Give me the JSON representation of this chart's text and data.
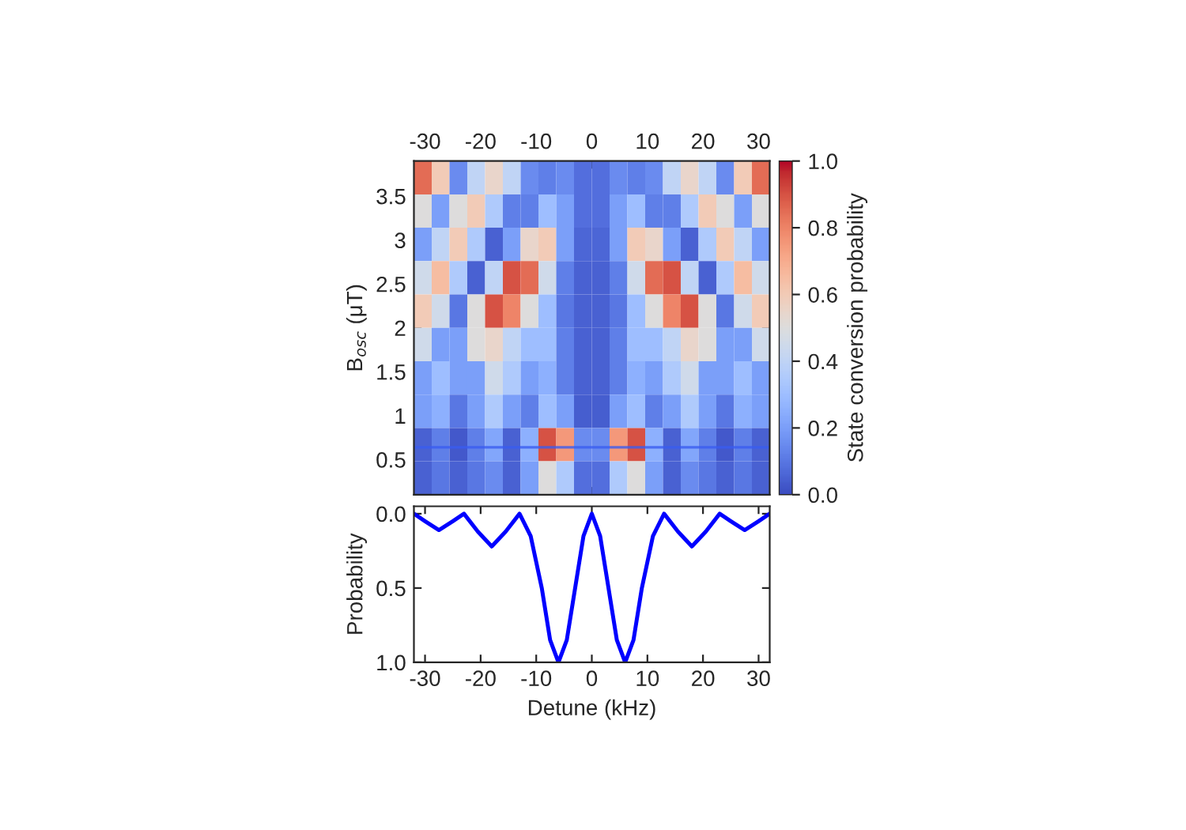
{
  "chart_data": [
    {
      "type": "heatmap",
      "ylabel": "B$_{osc}$ (μT)",
      "clabel": "State conversion probability",
      "x": [
        -30.4,
        -27.2,
        -24,
        -20.8,
        -17.6,
        -14.4,
        -11.2,
        -8,
        -4.8,
        -1.6,
        1.6,
        4.8,
        8,
        11.2,
        14.4,
        17.6,
        20.8,
        24,
        27.2,
        30.4
      ],
      "y": [
        3.71,
        3.33,
        2.95,
        2.57,
        2.19,
        1.81,
        1.43,
        1.05,
        0.67,
        0.29
      ],
      "cells": [
        [
          0.85,
          0.6,
          0.15,
          0.4,
          0.55,
          0.4,
          0.15,
          0.12,
          0.15,
          0.08,
          0.08,
          0.15,
          0.12,
          0.15,
          0.4,
          0.55,
          0.4,
          0.15,
          0.6,
          0.85
        ],
        [
          0.5,
          0.2,
          0.5,
          0.6,
          0.35,
          0.12,
          0.12,
          0.3,
          0.2,
          0.08,
          0.08,
          0.2,
          0.3,
          0.12,
          0.12,
          0.35,
          0.6,
          0.5,
          0.2,
          0.5
        ],
        [
          0.2,
          0.4,
          0.6,
          0.35,
          0.05,
          0.2,
          0.55,
          0.6,
          0.2,
          0.06,
          0.06,
          0.2,
          0.6,
          0.55,
          0.2,
          0.05,
          0.35,
          0.6,
          0.4,
          0.2
        ],
        [
          0.45,
          0.65,
          0.35,
          0.05,
          0.4,
          0.9,
          0.85,
          0.45,
          0.12,
          0.05,
          0.05,
          0.12,
          0.45,
          0.85,
          0.9,
          0.4,
          0.05,
          0.35,
          0.65,
          0.45
        ],
        [
          0.6,
          0.45,
          0.1,
          0.5,
          0.9,
          0.8,
          0.5,
          0.3,
          0.1,
          0.05,
          0.05,
          0.1,
          0.3,
          0.5,
          0.8,
          0.9,
          0.5,
          0.1,
          0.45,
          0.6
        ],
        [
          0.45,
          0.2,
          0.2,
          0.5,
          0.55,
          0.4,
          0.3,
          0.3,
          0.12,
          0.05,
          0.05,
          0.12,
          0.3,
          0.3,
          0.4,
          0.55,
          0.5,
          0.2,
          0.2,
          0.45
        ],
        [
          0.2,
          0.3,
          0.2,
          0.2,
          0.45,
          0.35,
          0.2,
          0.25,
          0.12,
          0.05,
          0.05,
          0.12,
          0.25,
          0.2,
          0.35,
          0.45,
          0.2,
          0.2,
          0.3,
          0.2
        ],
        [
          0.2,
          0.25,
          0.1,
          0.2,
          0.35,
          0.2,
          0.12,
          0.3,
          0.2,
          0.04,
          0.04,
          0.2,
          0.3,
          0.12,
          0.2,
          0.35,
          0.2,
          0.1,
          0.25,
          0.2
        ],
        [
          0.05,
          0.12,
          0.03,
          0.12,
          0.22,
          0.05,
          0.25,
          0.9,
          0.75,
          0.15,
          0.15,
          0.75,
          0.9,
          0.25,
          0.05,
          0.22,
          0.12,
          0.03,
          0.12,
          0.05
        ],
        [
          0.05,
          0.1,
          0.05,
          0.1,
          0.15,
          0.05,
          0.2,
          0.5,
          0.35,
          0.08,
          0.08,
          0.35,
          0.5,
          0.2,
          0.05,
          0.15,
          0.1,
          0.05,
          0.1,
          0.05
        ]
      ],
      "xlim": [
        -32,
        32
      ],
      "xticks": [
        -30,
        -20,
        -10,
        0,
        10,
        20,
        30
      ],
      "ylim": [
        0.1,
        3.9
      ],
      "yticks": [
        0.5,
        1,
        1.5,
        2,
        2.5,
        3,
        3.5
      ],
      "clim": [
        0,
        1
      ],
      "cticks": [
        {
          "value": 0,
          "label": "0.0"
        },
        {
          "value": 0.2,
          "label": "0.2"
        },
        {
          "value": 0.4,
          "label": "0.4"
        },
        {
          "value": 0.6,
          "label": "0.6"
        },
        {
          "value": 0.8,
          "label": "0.8"
        },
        {
          "value": 1,
          "label": "1.0"
        }
      ],
      "ref_lines": [
        {
          "axis": "y",
          "value": 0.64,
          "color": "#3a5cf0"
        }
      ]
    },
    {
      "type": "line",
      "xlabel": "Detune (kHz)",
      "ylabel": "Probability",
      "x": [
        -32,
        -30,
        -27.5,
        -25,
        -23,
        -20.5,
        -18,
        -15.5,
        -13,
        -11,
        -9,
        -7.5,
        -6,
        -4.5,
        -3,
        -1.5,
        0,
        1.5,
        3,
        4.5,
        6,
        7.5,
        9,
        11,
        13,
        15.5,
        18,
        20.5,
        23,
        25,
        27.5,
        30,
        32
      ],
      "series": [
        {
          "color": "#0000ff",
          "values": [
            0.0,
            0.05,
            0.11,
            0.05,
            0.0,
            0.12,
            0.22,
            0.12,
            0.0,
            0.15,
            0.5,
            0.85,
            1.0,
            0.85,
            0.5,
            0.15,
            0.0,
            0.15,
            0.5,
            0.85,
            1.0,
            0.85,
            0.5,
            0.15,
            0.0,
            0.12,
            0.22,
            0.12,
            0.0,
            0.05,
            0.11,
            0.05,
            0.0
          ]
        }
      ],
      "xlim": [
        -32,
        32
      ],
      "xticks": [
        -30,
        -20,
        -10,
        0,
        10,
        20,
        30
      ],
      "ylim": [
        1.0,
        -0.05
      ],
      "yticks": [
        {
          "value": 0,
          "label": "0.0"
        },
        {
          "value": 0.5,
          "label": "0.5"
        },
        {
          "value": 1,
          "label": "1.0"
        }
      ]
    }
  ]
}
